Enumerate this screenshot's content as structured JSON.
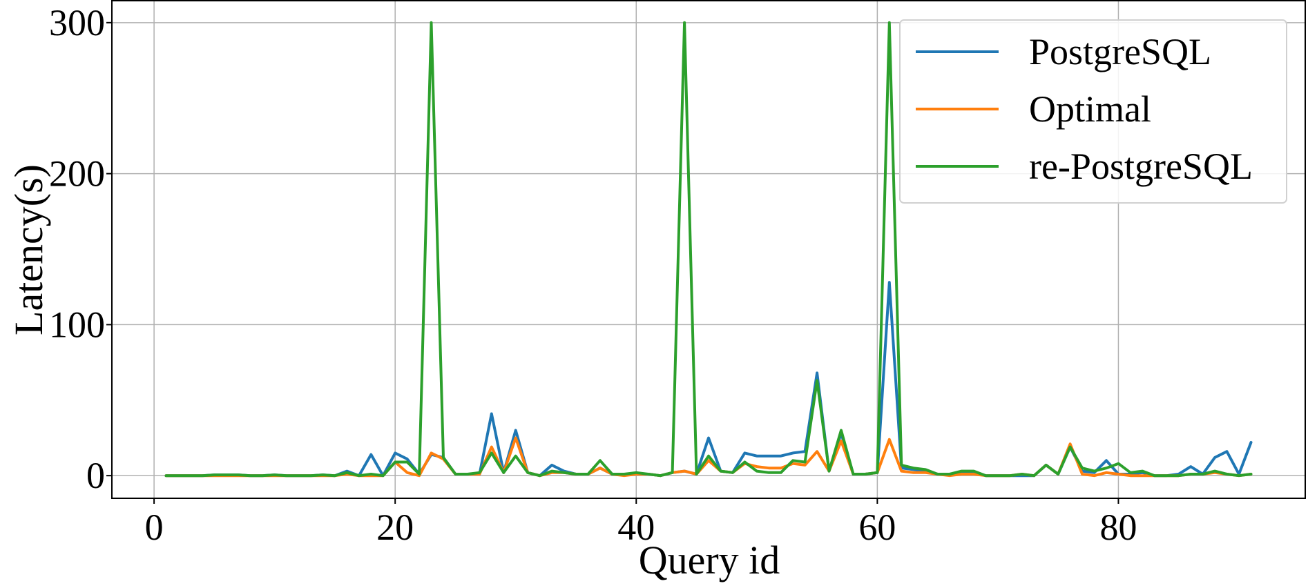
{
  "chart_data": {
    "type": "line",
    "title": "",
    "xlabel": "Query id",
    "ylabel": "Latency(s)",
    "xlim": [
      -3.5,
      95.5
    ],
    "ylim": [
      -15,
      315
    ],
    "xticks": [
      0,
      20,
      40,
      60,
      80
    ],
    "yticks": [
      0,
      100,
      200,
      300
    ],
    "grid": true,
    "legend_position": "top-right",
    "x": [
      1,
      2,
      3,
      4,
      5,
      6,
      7,
      8,
      9,
      10,
      11,
      12,
      13,
      14,
      15,
      16,
      17,
      18,
      19,
      20,
      21,
      22,
      23,
      24,
      25,
      26,
      27,
      28,
      29,
      30,
      31,
      32,
      33,
      34,
      35,
      36,
      37,
      38,
      39,
      40,
      41,
      42,
      43,
      44,
      45,
      46,
      47,
      48,
      49,
      50,
      51,
      52,
      53,
      54,
      55,
      56,
      57,
      58,
      59,
      60,
      61,
      62,
      63,
      64,
      65,
      66,
      67,
      68,
      69,
      70,
      71,
      72,
      73,
      74,
      75,
      76,
      77,
      78,
      79,
      80,
      81,
      82,
      83,
      84,
      85,
      86,
      87,
      88,
      89,
      90,
      91
    ],
    "series": [
      {
        "name": "PostgreSQL",
        "color": "#1f77b4",
        "values": [
          0,
          0,
          0,
          0,
          0.5,
          0.5,
          0.5,
          0,
          0,
          0.5,
          0,
          0,
          0,
          0.5,
          0,
          3,
          0,
          14,
          0,
          15,
          11,
          1,
          14,
          12,
          1,
          1,
          1,
          41,
          2,
          30,
          2,
          0,
          7,
          3,
          1,
          1,
          5,
          1,
          1,
          1,
          1,
          0,
          2,
          3,
          1,
          25,
          3,
          2,
          15,
          13,
          13,
          13,
          15,
          16,
          68,
          3,
          28,
          1,
          1,
          2,
          128,
          5,
          4,
          3,
          1,
          1,
          2,
          2,
          0,
          0,
          0,
          0,
          0,
          7,
          1,
          19,
          3,
          2,
          10,
          1,
          1,
          2,
          0,
          0,
          1,
          6,
          1,
          12,
          16,
          1,
          22
        ]
      },
      {
        "name": "Optimal",
        "color": "#ff7f0e",
        "values": [
          0,
          0,
          0,
          0,
          0,
          0,
          0,
          0,
          0,
          0,
          0,
          0,
          0,
          0,
          0,
          1,
          0,
          0,
          0,
          9,
          2,
          0,
          15,
          11,
          1,
          1,
          1,
          19,
          2,
          25,
          2,
          0,
          2,
          2,
          1,
          1,
          5,
          1,
          0,
          1,
          1,
          0,
          2,
          3,
          1,
          10,
          3,
          2,
          8,
          6,
          5,
          5,
          8,
          7,
          16,
          3,
          23,
          1,
          1,
          2,
          24,
          3,
          2,
          2,
          1,
          0,
          1,
          1,
          0,
          0,
          0,
          1,
          0,
          7,
          1,
          21,
          1,
          0,
          2,
          1,
          0,
          0,
          0,
          0,
          0,
          1,
          1,
          2,
          1,
          0,
          1
        ]
      },
      {
        "name": "re-PostgreSQL",
        "color": "#2ca02c",
        "values": [
          0,
          0,
          0,
          0,
          0.5,
          0.5,
          0.5,
          0,
          0,
          0.5,
          0,
          0,
          0,
          0.5,
          0,
          2,
          0,
          1,
          0,
          9,
          9,
          1,
          300,
          12,
          1,
          1,
          2,
          15,
          2,
          13,
          2,
          0,
          3,
          2,
          1,
          1,
          10,
          1,
          1,
          2,
          1,
          0,
          2,
          300,
          1,
          13,
          3,
          2,
          9,
          3,
          2,
          2,
          10,
          9,
          63,
          3,
          30,
          1,
          1,
          2,
          300,
          7,
          5,
          4,
          1,
          1,
          3,
          3,
          0,
          0,
          0,
          1,
          0,
          7,
          1,
          19,
          5,
          3,
          5,
          8,
          2,
          3,
          0,
          0,
          0,
          1,
          1,
          3,
          1,
          0,
          1
        ]
      }
    ]
  }
}
